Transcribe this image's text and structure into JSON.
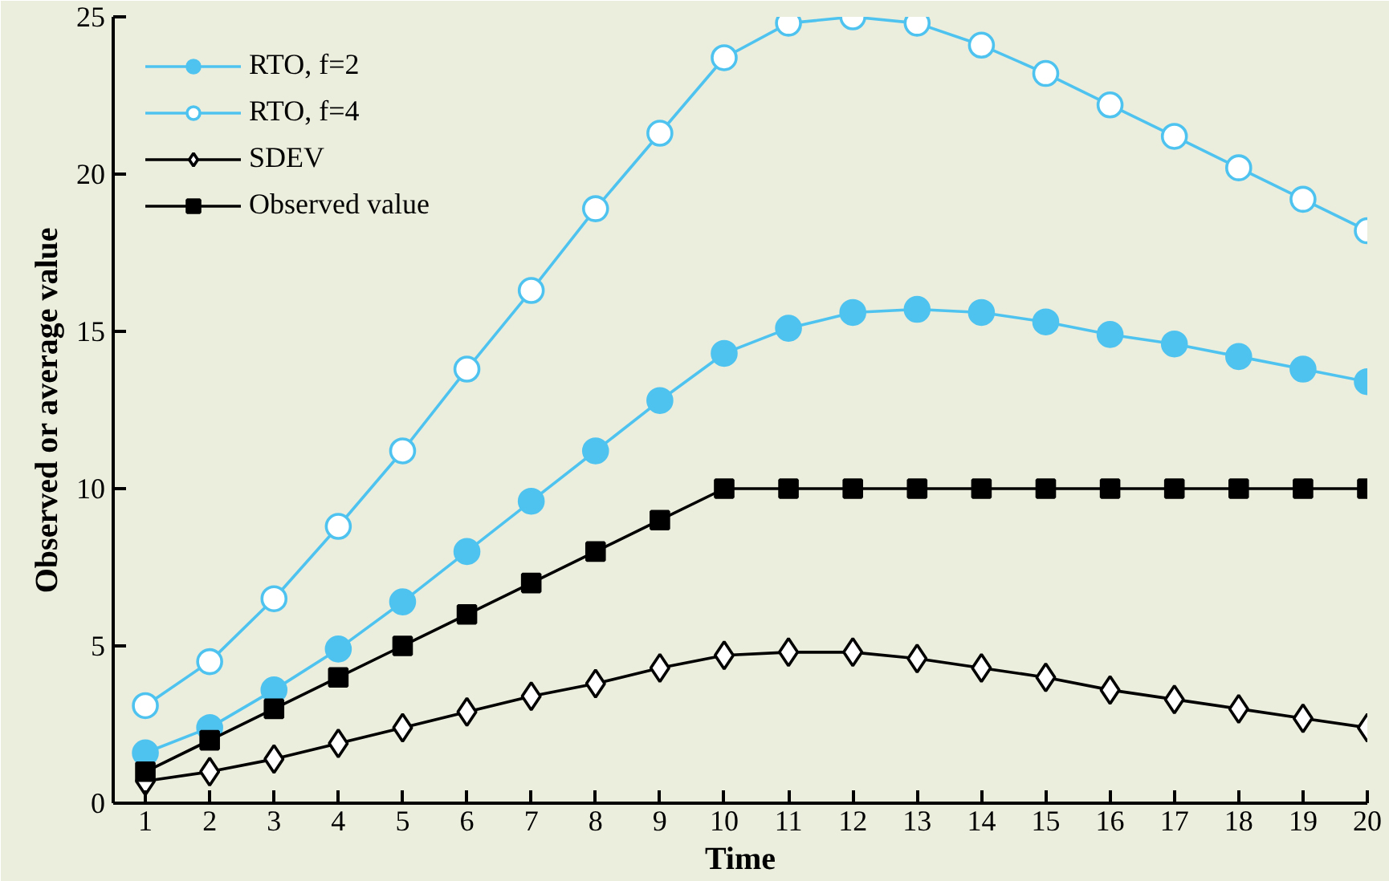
{
  "chart_data": {
    "type": "line",
    "xlabel": "Time",
    "ylabel": "Observed or average value",
    "x": [
      1,
      2,
      3,
      4,
      5,
      6,
      7,
      8,
      9,
      10,
      11,
      12,
      13,
      14,
      15,
      16,
      17,
      18,
      19,
      20
    ],
    "xlim": [
      0.5,
      20
    ],
    "xticks": [
      1,
      2,
      3,
      4,
      5,
      6,
      7,
      8,
      9,
      10,
      11,
      12,
      13,
      14,
      15,
      16,
      17,
      18,
      19,
      20
    ],
    "ylim": [
      0,
      25
    ],
    "yticks": [
      0,
      5,
      10,
      15,
      20,
      25
    ],
    "grid": false,
    "legend": "top left",
    "series": [
      {
        "name": "RTO, f=2",
        "color": "#4fc3f0",
        "marker": "circle",
        "values": [
          1.6,
          2.4,
          3.6,
          4.9,
          6.4,
          8.0,
          9.6,
          11.2,
          12.8,
          14.3,
          15.1,
          15.6,
          15.7,
          15.6,
          15.3,
          14.9,
          14.6,
          14.2,
          13.8,
          13.4
        ]
      },
      {
        "name": "RTO, f=4",
        "color": "#4fc3f0",
        "marker": "circle",
        "values": [
          3.1,
          4.5,
          6.5,
          8.8,
          11.2,
          13.8,
          16.3,
          18.9,
          21.3,
          23.7,
          24.8,
          25.0,
          24.8,
          24.1,
          23.2,
          22.2,
          21.2,
          20.2,
          19.2,
          18.2
        ]
      },
      {
        "name": "SDEV",
        "color": "#000000",
        "marker": "diamond",
        "values": [
          0.7,
          1.0,
          1.4,
          1.9,
          2.4,
          2.9,
          3.4,
          3.8,
          4.3,
          4.7,
          4.8,
          4.8,
          4.6,
          4.3,
          4.0,
          3.6,
          3.3,
          3.0,
          2.7,
          2.4
        ]
      },
      {
        "name": "Observed value",
        "color": "#000000",
        "marker": "square",
        "values": [
          1,
          2,
          3,
          4,
          5,
          6,
          7,
          8,
          9,
          10,
          10,
          10,
          10,
          10,
          10,
          10,
          10,
          10,
          10,
          10
        ]
      }
    ]
  }
}
